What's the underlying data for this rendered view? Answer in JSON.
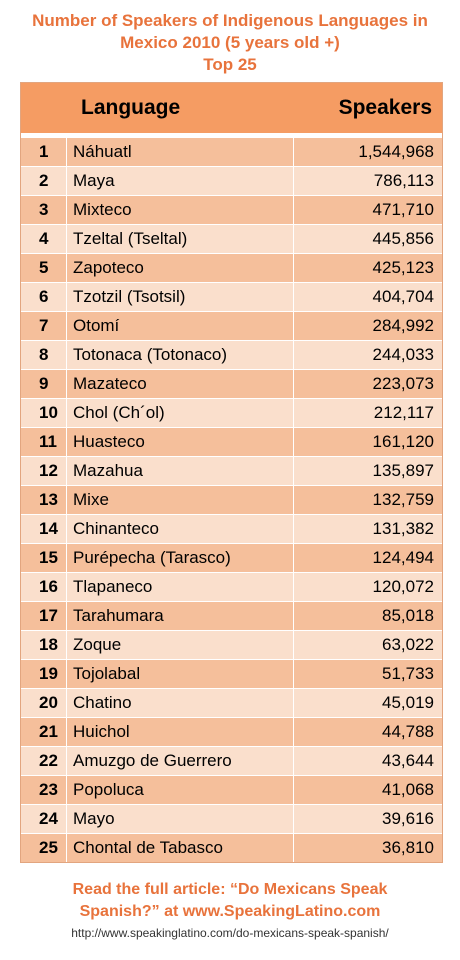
{
  "title": {
    "line1": "Number of Speakers of Indigenous Languages in",
    "line2": "Mexico 2010 (5 years old +)",
    "line3": "Top 25"
  },
  "table": {
    "headers": {
      "language": "Language",
      "speakers": "Speakers"
    },
    "rows": [
      {
        "rank": "1",
        "language": "Náhuatl",
        "speakers": "1,544,968"
      },
      {
        "rank": "2",
        "language": "Maya",
        "speakers": "786,113"
      },
      {
        "rank": "3",
        "language": "Mixteco",
        "speakers": "471,710"
      },
      {
        "rank": "4",
        "language": "Tzeltal (Tseltal)",
        "speakers": "445,856"
      },
      {
        "rank": "5",
        "language": "Zapoteco",
        "speakers": "425,123"
      },
      {
        "rank": "6",
        "language": "Tzotzil (Tsotsil)",
        "speakers": "404,704"
      },
      {
        "rank": "7",
        "language": "Otomí",
        "speakers": "284,992"
      },
      {
        "rank": "8",
        "language": "Totonaca (Totonaco)",
        "speakers": "244,033"
      },
      {
        "rank": "9",
        "language": "Mazateco",
        "speakers": "223,073"
      },
      {
        "rank": "10",
        "language": "Chol (Ch´ol)",
        "speakers": "212,117"
      },
      {
        "rank": "11",
        "language": "Huasteco",
        "speakers": "161,120"
      },
      {
        "rank": "12",
        "language": "Mazahua",
        "speakers": "135,897"
      },
      {
        "rank": "13",
        "language": "Mixe",
        "speakers": "132,759"
      },
      {
        "rank": "14",
        "language": "Chinanteco",
        "speakers": "131,382"
      },
      {
        "rank": "15",
        "language": "Purépecha (Tarasco)",
        "speakers": "124,494"
      },
      {
        "rank": "16",
        "language": "Tlapaneco",
        "speakers": "120,072"
      },
      {
        "rank": "17",
        "language": "Tarahumara",
        "speakers": "85,018"
      },
      {
        "rank": "18",
        "language": "Zoque",
        "speakers": "63,022"
      },
      {
        "rank": "19",
        "language": "Tojolabal",
        "speakers": "51,733"
      },
      {
        "rank": "20",
        "language": "Chatino",
        "speakers": "45,019"
      },
      {
        "rank": "21",
        "language": "Huichol",
        "speakers": "44,788"
      },
      {
        "rank": "22",
        "language": "Amuzgo de Guerrero",
        "speakers": "43,644"
      },
      {
        "rank": "23",
        "language": "Popoluca",
        "speakers": "41,068"
      },
      {
        "rank": "24",
        "language": "Mayo",
        "speakers": "39,616"
      },
      {
        "rank": "25",
        "language": "Chontal de Tabasco",
        "speakers": "36,810"
      }
    ]
  },
  "footer": {
    "line1": "Read the full article: “Do Mexicans Speak",
    "line2": "Spanish?” at www.SpeakingLatino.com",
    "url": "http://www.speakinglatino.com/do-mexicans-speak-spanish/"
  },
  "colors": {
    "accent": "#e8733c",
    "header_bg": "#f59c63",
    "row_dark": "#f5bf9b",
    "row_light": "#fadfcc"
  }
}
